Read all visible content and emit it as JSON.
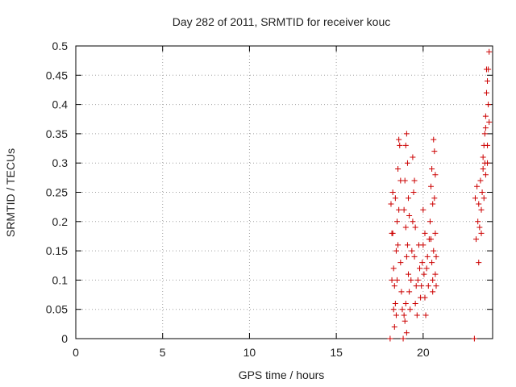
{
  "chart_data": {
    "type": "scatter",
    "title": "Day 282 of 2011, SRMTID for receiver kouc",
    "xlabel": "GPS time / hours",
    "ylabel": "SRMTID / TECUs",
    "xlim": [
      0,
      24
    ],
    "ylim": [
      0,
      0.5
    ],
    "xticks": [
      0,
      5,
      10,
      15,
      20
    ],
    "xtick_labels": [
      "0",
      "5",
      "10",
      "15",
      "20"
    ],
    "yticks": [
      0,
      0.05,
      0.1,
      0.15,
      0.2,
      0.25,
      0.3,
      0.35,
      0.4,
      0.45,
      0.5
    ],
    "ytick_labels": [
      "0",
      "0.05",
      "0.1",
      "0.15",
      "0.2",
      "0.25",
      "0.3",
      "0.35",
      "0.4",
      "0.45",
      "0.5"
    ],
    "grid": true,
    "marker": "plus",
    "color": "#cc0000",
    "series": [
      {
        "points": [
          [
            18.1,
            0.0
          ],
          [
            18.15,
            0.23
          ],
          [
            18.2,
            0.18
          ],
          [
            18.25,
            0.25
          ],
          [
            18.3,
            0.12
          ],
          [
            18.2,
            0.1
          ],
          [
            18.3,
            0.05
          ],
          [
            18.4,
            0.06
          ],
          [
            18.35,
            0.09
          ],
          [
            18.45,
            0.15
          ],
          [
            18.5,
            0.2
          ],
          [
            18.55,
            0.29
          ],
          [
            18.6,
            0.34
          ],
          [
            18.65,
            0.33
          ],
          [
            18.7,
            0.27
          ],
          [
            18.6,
            0.22
          ],
          [
            18.5,
            0.1
          ],
          [
            18.45,
            0.04
          ],
          [
            18.35,
            0.02
          ],
          [
            18.25,
            0.18
          ],
          [
            18.4,
            0.24
          ],
          [
            18.55,
            0.16
          ],
          [
            18.7,
            0.13
          ],
          [
            18.75,
            0.08
          ],
          [
            18.8,
            0.05
          ],
          [
            18.85,
            0.0
          ],
          [
            18.9,
            0.04
          ],
          [
            18.95,
            0.03
          ],
          [
            19.0,
            0.06
          ],
          [
            19.05,
            0.14
          ],
          [
            19.0,
            0.19
          ],
          [
            18.9,
            0.22
          ],
          [
            18.95,
            0.27
          ],
          [
            19.0,
            0.33
          ],
          [
            19.05,
            0.35
          ],
          [
            19.1,
            0.3
          ],
          [
            19.15,
            0.24
          ],
          [
            19.2,
            0.21
          ],
          [
            19.1,
            0.16
          ],
          [
            19.15,
            0.11
          ],
          [
            19.2,
            0.08
          ],
          [
            19.05,
            0.01
          ],
          [
            19.25,
            0.05
          ],
          [
            19.3,
            0.1
          ],
          [
            19.35,
            0.15
          ],
          [
            19.4,
            0.2
          ],
          [
            19.45,
            0.25
          ],
          [
            19.4,
            0.31
          ],
          [
            19.5,
            0.27
          ],
          [
            19.55,
            0.19
          ],
          [
            19.5,
            0.14
          ],
          [
            19.6,
            0.09
          ],
          [
            19.55,
            0.06
          ],
          [
            19.65,
            0.04
          ],
          [
            19.7,
            0.1
          ],
          [
            19.75,
            0.16
          ],
          [
            19.8,
            0.12
          ],
          [
            19.85,
            0.07
          ],
          [
            19.9,
            0.09
          ],
          [
            19.95,
            0.13
          ],
          [
            20.0,
            0.16
          ],
          [
            20.05,
            0.11
          ],
          [
            20.1,
            0.18
          ],
          [
            20.0,
            0.22
          ],
          [
            20.1,
            0.07
          ],
          [
            20.15,
            0.04
          ],
          [
            20.2,
            0.12
          ],
          [
            20.25,
            0.14
          ],
          [
            20.3,
            0.09
          ],
          [
            20.35,
            0.17
          ],
          [
            20.4,
            0.2
          ],
          [
            20.45,
            0.26
          ],
          [
            20.5,
            0.29
          ],
          [
            20.55,
            0.23
          ],
          [
            20.45,
            0.17
          ],
          [
            20.5,
            0.13
          ],
          [
            20.55,
            0.1
          ],
          [
            20.6,
            0.34
          ],
          [
            20.65,
            0.32
          ],
          [
            20.7,
            0.28
          ],
          [
            20.65,
            0.24
          ],
          [
            20.7,
            0.18
          ],
          [
            20.75,
            0.14
          ],
          [
            20.7,
            0.11
          ],
          [
            20.75,
            0.09
          ],
          [
            20.6,
            0.15
          ],
          [
            20.55,
            0.08
          ],
          [
            22.95,
            0.0
          ],
          [
            23.0,
            0.24
          ],
          [
            23.05,
            0.17
          ],
          [
            23.1,
            0.26
          ],
          [
            23.15,
            0.2
          ],
          [
            23.2,
            0.13
          ],
          [
            23.25,
            0.19
          ],
          [
            23.2,
            0.23
          ],
          [
            23.3,
            0.27
          ],
          [
            23.35,
            0.22
          ],
          [
            23.4,
            0.25
          ],
          [
            23.45,
            0.29
          ],
          [
            23.5,
            0.33
          ],
          [
            23.45,
            0.31
          ],
          [
            23.55,
            0.35
          ],
          [
            23.6,
            0.36
          ],
          [
            23.55,
            0.3
          ],
          [
            23.6,
            0.38
          ],
          [
            23.65,
            0.42
          ],
          [
            23.7,
            0.44
          ],
          [
            23.65,
            0.46
          ],
          [
            23.75,
            0.4
          ],
          [
            23.7,
            0.33
          ],
          [
            23.8,
            0.49
          ],
          [
            23.75,
            0.46
          ],
          [
            23.8,
            0.37
          ],
          [
            23.7,
            0.3
          ],
          [
            23.6,
            0.28
          ],
          [
            23.5,
            0.24
          ],
          [
            23.35,
            0.18
          ]
        ]
      }
    ]
  }
}
